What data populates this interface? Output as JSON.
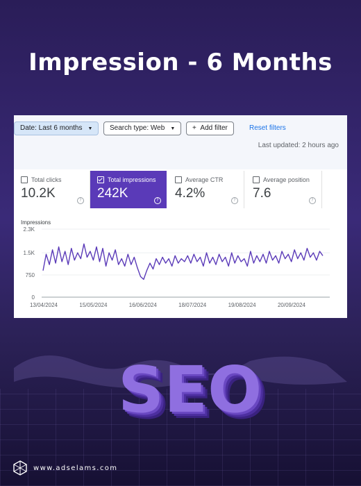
{
  "title": "Impression - 6 Months",
  "filters": {
    "date_label": "Date: Last 6 months",
    "search_type_label": "Search type: Web",
    "add_filter_label": "Add filter",
    "reset_label": "Reset filters",
    "last_updated": "Last updated: 2 hours ago"
  },
  "metrics": [
    {
      "label": "Total clicks",
      "value": "10.2K",
      "checked": false
    },
    {
      "label": "Total impressions",
      "value": "242K",
      "checked": true
    },
    {
      "label": "Average CTR",
      "value": "4.2%",
      "checked": false
    },
    {
      "label": "Average position",
      "value": "7.6",
      "checked": false
    }
  ],
  "colors": {
    "accent": "#5a3ab8",
    "line": "#5a3ab8",
    "background": "#2a1d58"
  },
  "chart_data": {
    "type": "line",
    "ylabel": "Impressions",
    "ylim": [
      0,
      2300
    ],
    "yticks": [
      "2.3K",
      "1.5K",
      "750",
      "0"
    ],
    "yticks_values": [
      2300,
      1500,
      750,
      0
    ],
    "xticks": [
      "13/04/2024",
      "15/05/2024",
      "16/06/2024",
      "18/07/2024",
      "19/08/2024",
      "20/09/2024"
    ],
    "series": [
      {
        "values": [
          900,
          1450,
          1100,
          1600,
          1150,
          1700,
          1200,
          1550,
          1100,
          1650,
          1250,
          1500,
          1300,
          1800,
          1350,
          1550,
          1250,
          1700,
          1200,
          1650,
          1050,
          1500,
          1250,
          1600,
          1100,
          1300,
          1050,
          1450,
          1100,
          1350,
          1000,
          700,
          600,
          900,
          1150,
          950,
          1300,
          1100,
          1350,
          1150,
          1300,
          1050,
          1400,
          1150,
          1300,
          1200,
          1400,
          1150,
          1450,
          1200,
          1350,
          1050,
          1500,
          1150,
          1350,
          1100,
          1450,
          1200,
          1350,
          1050,
          1500,
          1150,
          1400,
          1200,
          1300,
          1050,
          1550,
          1150,
          1400,
          1200,
          1450,
          1150,
          1550,
          1250,
          1400,
          1150,
          1550,
          1300,
          1450,
          1200,
          1600,
          1300,
          1500,
          1250,
          1650,
          1350,
          1500,
          1250,
          1550,
          1400
        ]
      }
    ]
  },
  "seo_text": "SEO",
  "footer_url": "www.adselams.com",
  "icons": [
    "check-icon",
    "help-icon",
    "plus-icon",
    "caret-down-icon",
    "logo-icon"
  ]
}
